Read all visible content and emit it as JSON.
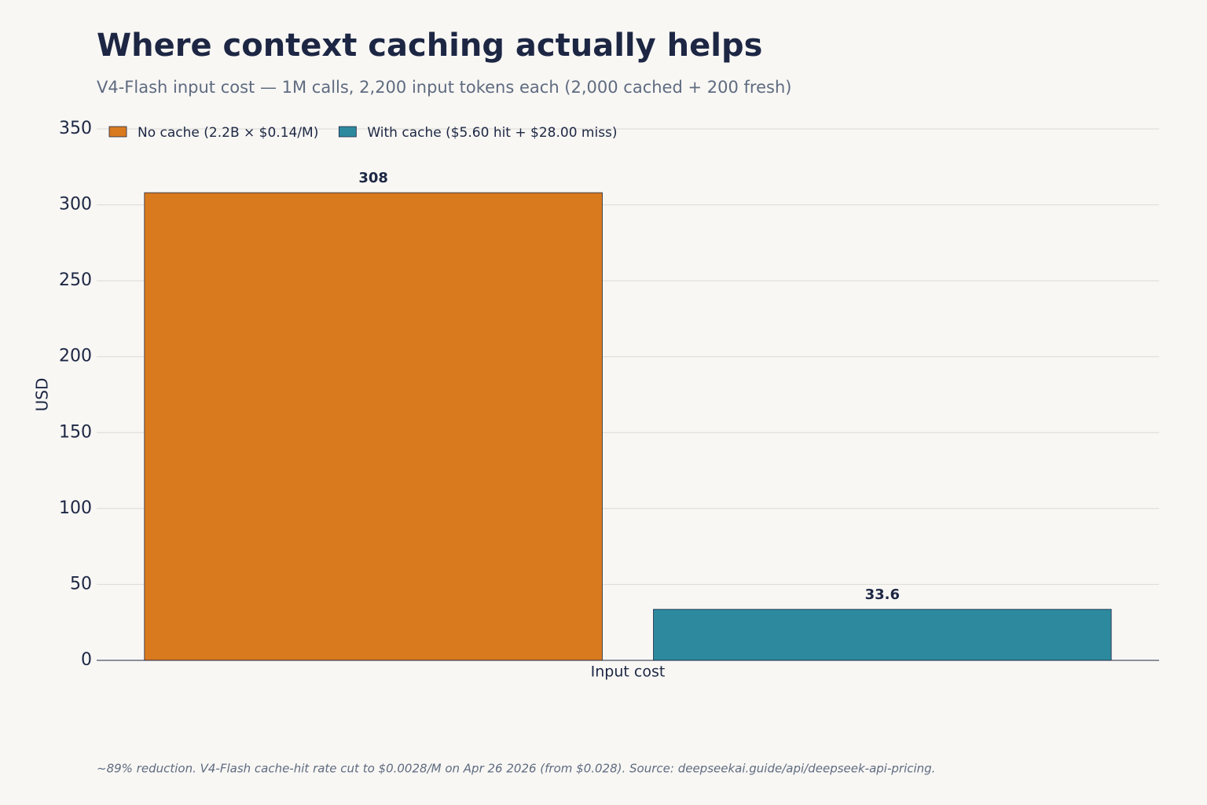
{
  "chart_data": {
    "type": "bar",
    "title": "Where context caching actually helps",
    "subtitle": "V4-Flash input cost — 1M calls, 2,200 input tokens each (2,000 cached + 200 fresh)",
    "ylabel": "USD",
    "categories": [
      "Input cost"
    ],
    "series": [
      {
        "name": "No cache (2.2B × $0.14/M)",
        "color": "#d97a1e",
        "values": [
          308
        ]
      },
      {
        "name": "With cache ($5.60 hit + $28.00 miss)",
        "color": "#2d8a9e",
        "values": [
          33.6
        ]
      }
    ],
    "ylim": [
      0,
      350
    ],
    "yticks": [
      0,
      50,
      100,
      150,
      200,
      250,
      300,
      350
    ],
    "grid": true,
    "legend": "upper left",
    "footnote": "~89% reduction. V4-Flash cache-hit rate cut to $0.0028/M on Apr 26 2026 (from $0.028).  Source: deepseekai.guide/api/deepseek-api-pricing."
  }
}
